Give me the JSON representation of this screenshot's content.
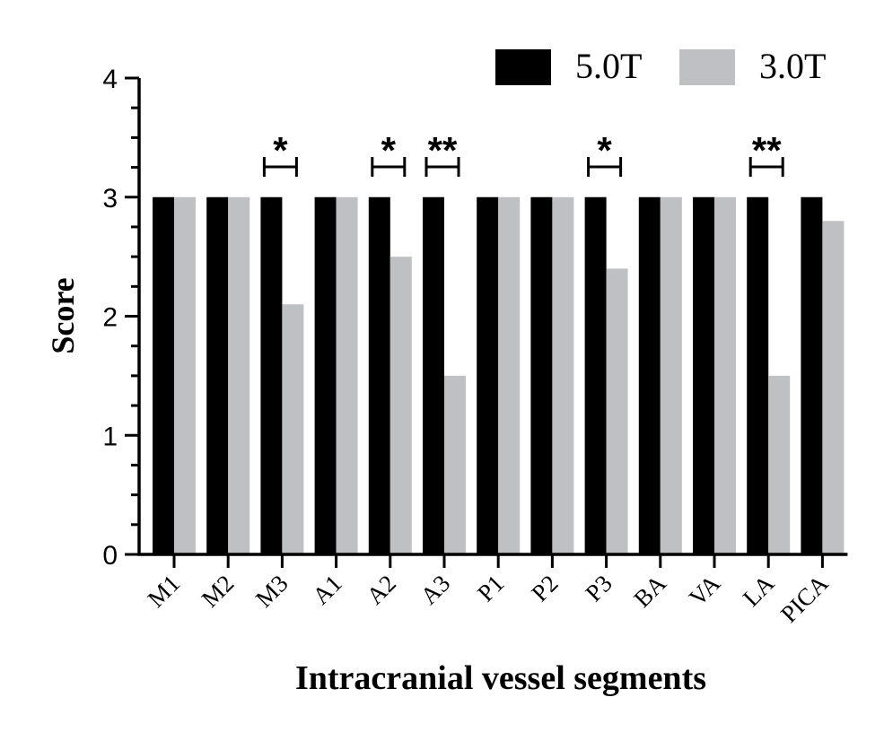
{
  "chart_data": {
    "type": "bar",
    "xlabel": "Intracranial vessel segments",
    "ylabel": "Score",
    "ylim": [
      0,
      4
    ],
    "yticks": [
      "0",
      "1",
      "2",
      "3",
      "4"
    ],
    "categories": [
      "M1",
      "M2",
      "M3",
      "A1",
      "A2",
      "A3",
      "P1",
      "P2",
      "P3",
      "BA",
      "VA",
      "LA",
      "PICA"
    ],
    "series": [
      {
        "name": "5.0T",
        "color": "#000000",
        "values": [
          3,
          3,
          3,
          3,
          3,
          3,
          3,
          3,
          3,
          3,
          3,
          3,
          3
        ]
      },
      {
        "name": "3.0T",
        "color": "#bfc0c3",
        "values": [
          3,
          3,
          2.1,
          3,
          2.5,
          1.5,
          3,
          3,
          2.4,
          3,
          3,
          1.5,
          2.8
        ]
      }
    ],
    "legend_position": "top-right",
    "significance": [
      {
        "category": "M3",
        "label": "*"
      },
      {
        "category": "A2",
        "label": "*"
      },
      {
        "category": "A3",
        "label": "**"
      },
      {
        "category": "P3",
        "label": "*"
      },
      {
        "category": "LA",
        "label": "**"
      }
    ]
  }
}
